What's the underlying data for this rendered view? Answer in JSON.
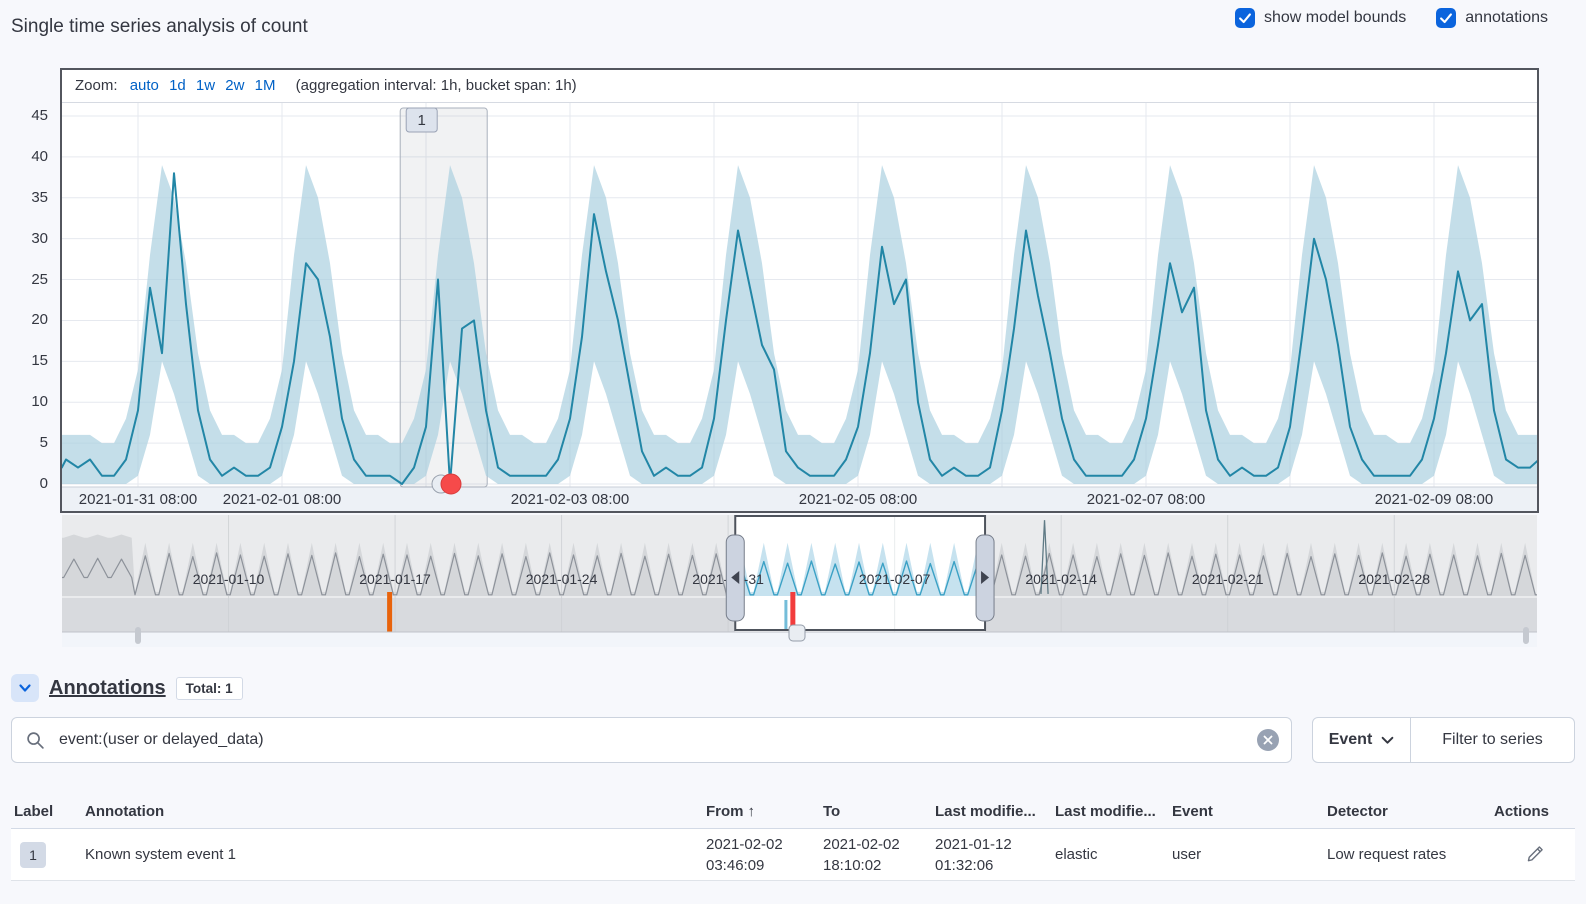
{
  "header": {
    "title": "Single time series analysis of count",
    "checkboxes": [
      {
        "label": "show model bounds",
        "checked": true
      },
      {
        "label": "annotations",
        "checked": true
      }
    ]
  },
  "chart_controls": {
    "zoom_label": "Zoom:",
    "zoom_options": [
      "auto",
      "1d",
      "1w",
      "2w",
      "1M"
    ],
    "aggregation_note": "(aggregation interval: 1h, bucket span: 1h)"
  },
  "annotations_section": {
    "title": "Annotations",
    "total_badge": "Total: 1",
    "search": {
      "value": "event:(user or delayed_data)"
    },
    "filter": {
      "event_label": "Event",
      "filter_to_series_label": "Filter to series"
    }
  },
  "table": {
    "columns": [
      "Label",
      "Annotation",
      "From",
      "To",
      "Last modifie...",
      "Last modifie...",
      "Event",
      "Detector",
      "Actions"
    ],
    "sort_column": "From",
    "sort_arrow": "↑",
    "rows": [
      {
        "label": "1",
        "annotation": "Known system event 1",
        "from": {
          "date": "2021-02-02",
          "time": "03:46:09"
        },
        "to": {
          "date": "2021-02-02",
          "time": "18:10:02"
        },
        "last_modified_date": {
          "date": "2021-01-12",
          "time": "01:32:06"
        },
        "last_modified_by": "elastic",
        "event": "user",
        "detector": "Low request rates"
      }
    ]
  },
  "colors": {
    "accent_blue": "#0b64dd",
    "link_blue": "#0061c6",
    "text": "#343741",
    "border_dark": "#53565e",
    "anomaly_red": "#f64a4a",
    "delayed_data_orange": "#e8630c"
  },
  "chart_data": [
    {
      "id": "main-timeseries",
      "type": "line",
      "series_name": "count",
      "ylim": [
        0,
        47
      ],
      "yticks": [
        0,
        5,
        10,
        15,
        20,
        25,
        30,
        35,
        40,
        45
      ],
      "grid_hours": [
        8,
        32,
        56,
        80,
        104,
        128,
        152,
        176,
        200,
        224
      ],
      "xticks": [
        {
          "hour": 8,
          "label": "2021-01-31 08:00"
        },
        {
          "hour": 32,
          "label": "2021-02-01 08:00"
        },
        {
          "hour": 80,
          "label": "2021-02-03 08:00"
        },
        {
          "hour": 128,
          "label": "2021-02-05 08:00"
        },
        {
          "hour": 176,
          "label": "2021-02-07 08:00"
        },
        {
          "hour": 224,
          "label": "2021-02-09 08:00"
        }
      ],
      "bucket_hours": 2,
      "bounds_upper": [
        6,
        5,
        5,
        8,
        14,
        28,
        39,
        35,
        27,
        16,
        9,
        6
      ],
      "bounds_lower": [
        0,
        0,
        0,
        0,
        1,
        6,
        15,
        11,
        6,
        1,
        0,
        0
      ],
      "pre_points": [
        {
          "hour": -4.7,
          "value": 2
        },
        {
          "hour": -4,
          "value": 3
        },
        {
          "hour": -2,
          "value": 2
        }
      ],
      "post_points": [
        {
          "hour": 240,
          "value": 2
        },
        {
          "hour": 241.5,
          "value": 3
        }
      ],
      "days": [
        {
          "date": "2021-01-31",
          "actual": [
            3,
            1,
            1,
            3,
            9,
            24,
            16,
            38,
            22,
            9,
            3,
            1
          ]
        },
        {
          "date": "2021-02-01",
          "actual": [
            2,
            1,
            1,
            2,
            7,
            15,
            27,
            25,
            18,
            8,
            3,
            1
          ]
        },
        {
          "date": "2021-02-02",
          "actual": [
            1,
            1,
            0,
            2,
            7,
            25,
            0,
            19,
            20,
            9,
            2,
            1
          ]
        },
        {
          "date": "2021-02-03",
          "actual": [
            1,
            1,
            1,
            3,
            8,
            18,
            33,
            26,
            20,
            12,
            4,
            1
          ]
        },
        {
          "date": "2021-02-04",
          "actual": [
            2,
            1,
            1,
            2,
            8,
            20,
            31,
            24,
            17,
            14,
            4,
            2
          ]
        },
        {
          "date": "2021-02-05",
          "actual": [
            1,
            1,
            1,
            3,
            7,
            16,
            29,
            22,
            25,
            10,
            3,
            1
          ]
        },
        {
          "date": "2021-02-06",
          "actual": [
            2,
            1,
            1,
            2,
            9,
            19,
            31,
            23,
            16,
            8,
            3,
            1
          ]
        },
        {
          "date": "2021-02-07",
          "actual": [
            1,
            1,
            1,
            3,
            8,
            17,
            27,
            21,
            24,
            9,
            3,
            1
          ]
        },
        {
          "date": "2021-02-08",
          "actual": [
            2,
            1,
            1,
            2,
            7,
            18,
            30,
            25,
            17,
            7,
            3,
            1
          ]
        },
        {
          "date": "2021-02-09",
          "actual": [
            1,
            1,
            1,
            3,
            8,
            16,
            26,
            20,
            22,
            9,
            3,
            2
          ]
        }
      ],
      "annotation_band": {
        "label": "1",
        "start_hour": 51.7,
        "end_hour": 66.2
      },
      "anomaly_marker": {
        "hour": 60,
        "value": 0,
        "severity_color": "#f64a4a"
      },
      "line_color": "#2286a6",
      "bounds_color": "#a8cfdf"
    },
    {
      "id": "context-overview",
      "type": "area",
      "start_date": "2021-01-03",
      "days_total": 62,
      "xticks": [
        {
          "day": 7,
          "label": "2021-01-10"
        },
        {
          "day": 14,
          "label": "2021-01-17"
        },
        {
          "day": 21,
          "label": "2021-01-24"
        },
        {
          "day": 28,
          "label": "2021-01-31"
        },
        {
          "day": 35,
          "label": "2021-02-07"
        },
        {
          "day": 42,
          "label": "2021-02-14"
        },
        {
          "day": 49,
          "label": "2021-02-21"
        },
        {
          "day": 56,
          "label": "2021-02-28"
        }
      ],
      "line_peaks": [
        0.9,
        0.92,
        0.9,
        0.98,
        1.04,
        0.96,
        1.05,
        1.0,
        0.97,
        1.03,
        0.99,
        1.05,
        0.96,
        1.02,
        1.0,
        0.97,
        1.04,
        0.98,
        1.03,
        0.96,
        1.05,
        1.0,
        0.98,
        1.04,
        0.97,
        1.02,
        0.99,
        1.03,
        0.8,
        0.84,
        0.8,
        0.85,
        0.78,
        0.83,
        0.8,
        0.85,
        0.79,
        0.84,
        0.8,
        1.0,
        0.97,
        1.04,
        1.0,
        0.96,
        1.03,
        0.99,
        1.05,
        0.97,
        1.02,
        1.0,
        0.98,
        1.04,
        0.96,
        1.03,
        0.99,
        1.05,
        0.97,
        1.02,
        1.0,
        0.98,
        1.04,
        0.99
      ],
      "band_peak": 1.3,
      "plateau": {
        "day_start": 0,
        "day_end": 3,
        "level": 1.5
      },
      "spike": {
        "day": 41.3,
        "value": 1.85
      },
      "selection": {
        "day_start": 28.3,
        "day_end": 38.8
      },
      "markers": [
        {
          "day": 13.75,
          "color": "#e8630c",
          "kind": "delayed-data-marker"
        },
        {
          "day": 30.45,
          "color": "#74bdd9",
          "kind": "annotation-marker-secondary"
        },
        {
          "day": 30.7,
          "color": "#f23c3c",
          "kind": "annotation-marker"
        }
      ],
      "gray_line": "#8d929a",
      "gray_fill": "#d5d7da",
      "sel_line": "#3ba1c5",
      "sel_fill": "#c6e2ef",
      "spike_color": "#5f7a85"
    }
  ]
}
